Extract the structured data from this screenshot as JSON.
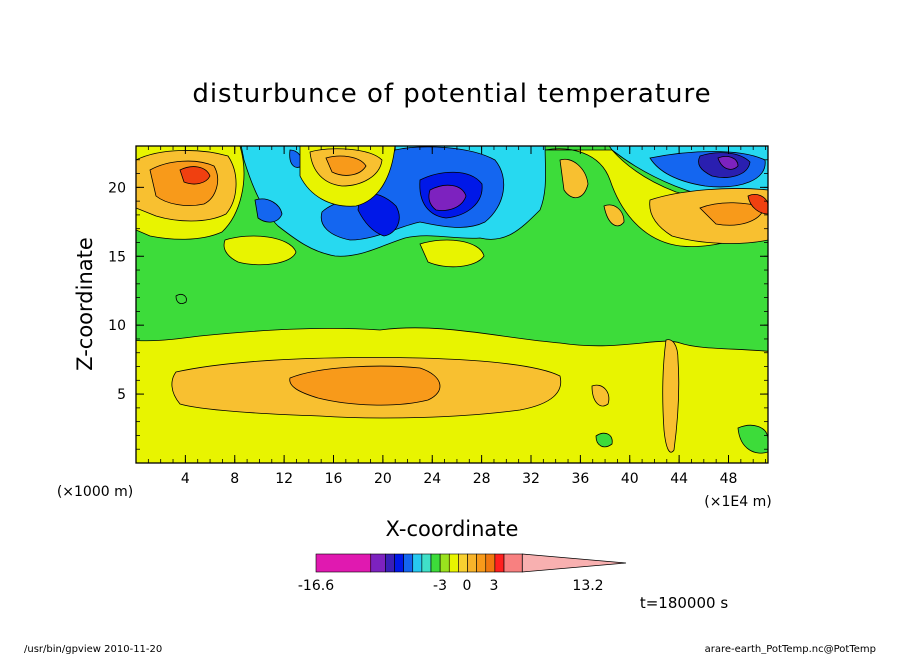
{
  "chart_data": {
    "type": "heatmap",
    "title": "disturbunce of potential temperature",
    "xlabel": "X-coordinate",
    "ylabel": "Z-coordinate",
    "x_unit_note": "(×1000 m)",
    "x_scale_note": "(×1E4 m)",
    "xlim": [
      0,
      51.2
    ],
    "ylim": [
      0,
      23
    ],
    "x_ticks": [
      "4",
      "8",
      "12",
      "16",
      "20",
      "24",
      "28",
      "32",
      "36",
      "40",
      "44",
      "48"
    ],
    "y_ticks": [
      "5",
      "10",
      "15",
      "20"
    ],
    "colorbar": {
      "min_label": "-16.6",
      "max_label": "13.2",
      "mid_labels": [
        "-3",
        "0",
        "3"
      ],
      "levels": [
        -16.6,
        -10.6,
        -9,
        -8,
        -7,
        -6,
        -5,
        -4,
        -3,
        -2,
        -1,
        0,
        1,
        2,
        3,
        4,
        6,
        13.2
      ],
      "colors": [
        "#e019b0",
        "#7d22bf",
        "#3a1fb7",
        "#0018e8",
        "#1466f0",
        "#27c9f0",
        "#40e0c8",
        "#3ddc3a",
        "#9ae21e",
        "#e8f400",
        "#f8d030",
        "#f8b42a",
        "#f89a1a",
        "#f07810",
        "#ff2020",
        "#f88080",
        "#f8b0b0"
      ]
    },
    "time_label": "t=180000 s"
  },
  "footer": {
    "left": "/usr/bin/gpview 2010-11-20",
    "right": "arare-earth_PotTemp.nc@PotTemp"
  },
  "colors": {
    "yellow": "#e8f400",
    "lightorange": "#f8c030",
    "orange": "#f89a1a",
    "green": "#3ddc3a",
    "cyan": "#27d9f0",
    "blue": "#1466f0",
    "darkblue": "#0018e8",
    "navy": "#2a1fb0",
    "purple": "#7d22bf",
    "red": "#f04010",
    "salmon": "#f88a7a"
  }
}
